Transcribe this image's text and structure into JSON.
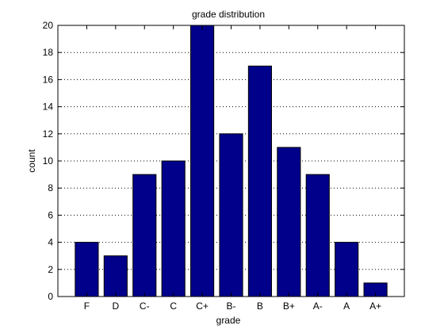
{
  "chart_data": {
    "type": "bar",
    "title": "grade distribution",
    "xlabel": "grade",
    "ylabel": "count",
    "categories": [
      "F",
      "D",
      "C-",
      "C",
      "C+",
      "B-",
      "B",
      "B+",
      "A-",
      "A",
      "A+"
    ],
    "values": [
      4,
      3,
      9,
      10,
      20,
      12,
      17,
      11,
      9,
      4,
      1
    ],
    "ylim": [
      0,
      20
    ],
    "yticks": [
      0,
      2,
      4,
      6,
      8,
      10,
      12,
      14,
      16,
      18,
      20
    ],
    "grid": "horizontal-dotted",
    "bar_color": "#00008b",
    "bar_edge_color": "#000000",
    "legend": "none"
  }
}
